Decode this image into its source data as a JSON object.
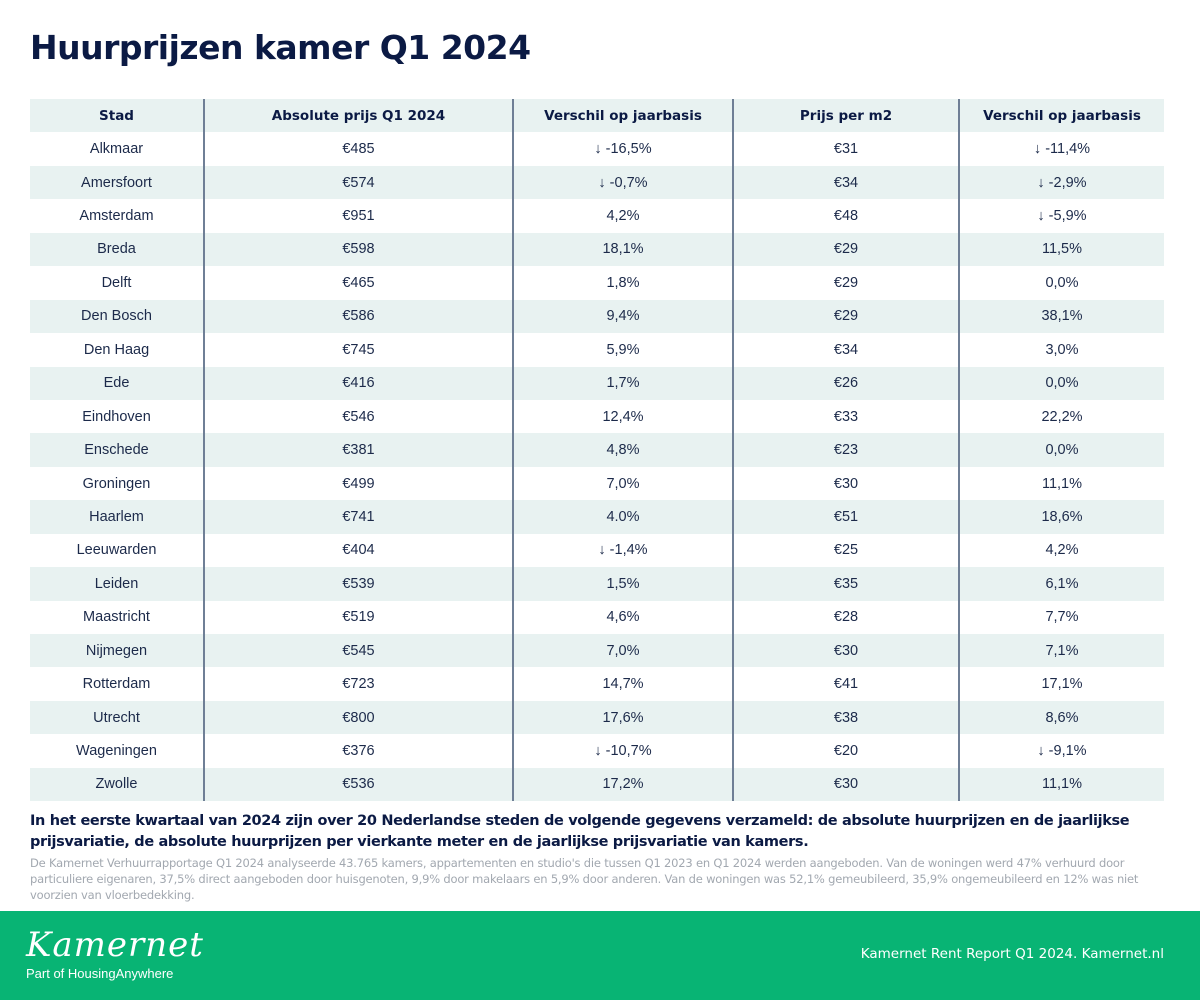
{
  "title": "Huurprijzen kamer Q1 2024",
  "colors": {
    "header_bg": "#e8f2f1",
    "negative": "#e8504c",
    "text": "#0b1a44",
    "footer_bg": "#08b474"
  },
  "table": {
    "headers": [
      "Stad",
      "Absolute prijs Q1 2024",
      "Verschil op jaarbasis",
      "Prijs per m2",
      "Verschil op jaarbasis"
    ],
    "rows": [
      {
        "city": "Alkmaar",
        "price": "€485",
        "yoy": "↓ -16,5%",
        "yoy_neg": true,
        "m2": "€31",
        "m2_yoy": "↓ -11,4%",
        "m2_yoy_neg": true
      },
      {
        "city": "Amersfoort",
        "price": "€574",
        "yoy": "↓ -0,7%",
        "yoy_neg": true,
        "m2": "€34",
        "m2_yoy": "↓ -2,9%",
        "m2_yoy_neg": true
      },
      {
        "city": "Amsterdam",
        "price": "€951",
        "yoy": "4,2%",
        "yoy_neg": false,
        "m2": "€48",
        "m2_yoy": "↓ -5,9%",
        "m2_yoy_neg": true
      },
      {
        "city": "Breda",
        "price": "€598",
        "yoy": "18,1%",
        "yoy_neg": false,
        "m2": "€29",
        "m2_yoy": "11,5%",
        "m2_yoy_neg": false
      },
      {
        "city": "Delft",
        "price": "€465",
        "yoy": "1,8%",
        "yoy_neg": false,
        "m2": "€29",
        "m2_yoy": "0,0%",
        "m2_yoy_neg": false
      },
      {
        "city": "Den Bosch",
        "price": "€586",
        "yoy": "9,4%",
        "yoy_neg": false,
        "m2": "€29",
        "m2_yoy": "38,1%",
        "m2_yoy_neg": false
      },
      {
        "city": "Den Haag",
        "price": "€745",
        "yoy": "5,9%",
        "yoy_neg": false,
        "m2": "€34",
        "m2_yoy": "3,0%",
        "m2_yoy_neg": false
      },
      {
        "city": "Ede",
        "price": "€416",
        "yoy": "1,7%",
        "yoy_neg": false,
        "m2": "€26",
        "m2_yoy": "0,0%",
        "m2_yoy_neg": false
      },
      {
        "city": "Eindhoven",
        "price": "€546",
        "yoy": "12,4%",
        "yoy_neg": false,
        "m2": "€33",
        "m2_yoy": "22,2%",
        "m2_yoy_neg": false
      },
      {
        "city": "Enschede",
        "price": "€381",
        "yoy": "4,8%",
        "yoy_neg": false,
        "m2": "€23",
        "m2_yoy": "0,0%",
        "m2_yoy_neg": false
      },
      {
        "city": "Groningen",
        "price": "€499",
        "yoy": "7,0%",
        "yoy_neg": false,
        "m2": "€30",
        "m2_yoy": "11,1%",
        "m2_yoy_neg": false
      },
      {
        "city": "Haarlem",
        "price": "€741",
        "yoy": "4.0%",
        "yoy_neg": false,
        "m2": "€51",
        "m2_yoy": "18,6%",
        "m2_yoy_neg": false
      },
      {
        "city": "Leeuwarden",
        "price": "€404",
        "yoy": "↓ -1,4%",
        "yoy_neg": true,
        "m2": "€25",
        "m2_yoy": "4,2%",
        "m2_yoy_neg": false
      },
      {
        "city": "Leiden",
        "price": "€539",
        "yoy": "1,5%",
        "yoy_neg": false,
        "m2": "€35",
        "m2_yoy": "6,1%",
        "m2_yoy_neg": false
      },
      {
        "city": "Maastricht",
        "price": "€519",
        "yoy": "4,6%",
        "yoy_neg": false,
        "m2": "€28",
        "m2_yoy": "7,7%",
        "m2_yoy_neg": false
      },
      {
        "city": "Nijmegen",
        "price": "€545",
        "yoy": "7,0%",
        "yoy_neg": false,
        "m2": "€30",
        "m2_yoy": "7,1%",
        "m2_yoy_neg": false
      },
      {
        "city": "Rotterdam",
        "price": "€723",
        "yoy": "14,7%",
        "yoy_neg": false,
        "m2": "€41",
        "m2_yoy": "17,1%",
        "m2_yoy_neg": false
      },
      {
        "city": "Utrecht",
        "price": "€800",
        "yoy": "17,6%",
        "yoy_neg": false,
        "m2": "€38",
        "m2_yoy": "8,6%",
        "m2_yoy_neg": false
      },
      {
        "city": "Wageningen",
        "price": "€376",
        "yoy": "↓ -10,7%",
        "yoy_neg": true,
        "m2": "€20",
        "m2_yoy": "↓ -9,1%",
        "m2_yoy_neg": true
      },
      {
        "city": "Zwolle",
        "price": "€536",
        "yoy": "17,2%",
        "yoy_neg": false,
        "m2": "€30",
        "m2_yoy": "11,1%",
        "m2_yoy_neg": false
      }
    ]
  },
  "summary": "In het eerste kwartaal van 2024 zijn over 20 Nederlandse steden de volgende gegevens verzameld: de absolute huurprijzen en de jaarlijkse prijsvariatie, de absolute huurprijzen per vierkante meter en de jaarlijkse prijsvariatie van kamers.",
  "note": "De Kamernet Verhuurrapportage Q1 2024 analyseerde 43.765 kamers, appartementen en studio's die tussen Q1 2023 en Q1 2024 werden aangeboden. Van de woningen werd 47% verhuurd door particuliere eigenaren, 37,5% direct aangeboden door huisgenoten, 9,9% door makelaars en 5,9% door anderen. Van de woningen was 52,1% gemeubileerd, 35,9% ongemeubileerd en 12% was niet voorzien van vloerbedekking.",
  "footer": {
    "logo": "Kamernet",
    "logo_sub": "Part of HousingAnywhere",
    "text": "Kamernet Rent Report Q1 2024. Kamernet.nl"
  }
}
